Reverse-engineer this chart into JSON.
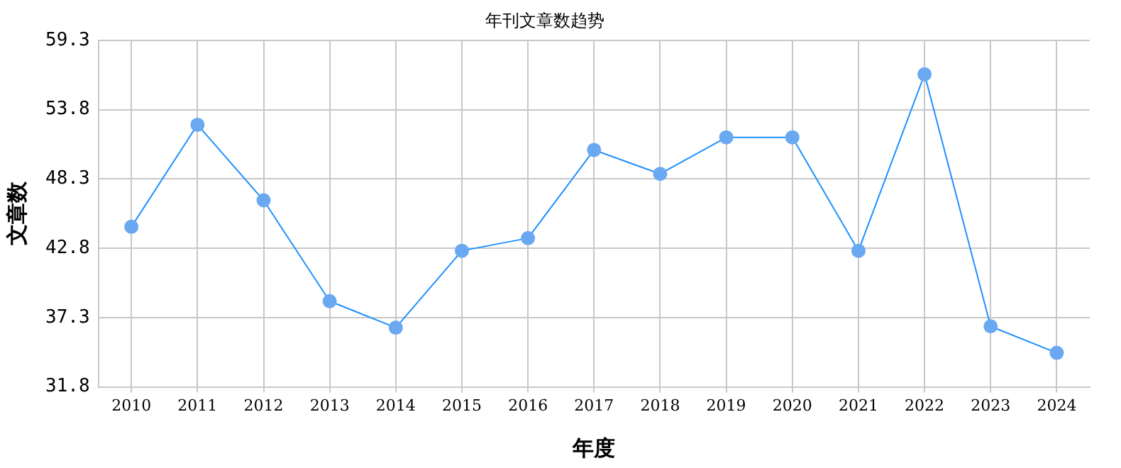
{
  "chart_data": {
    "type": "line",
    "title": "年刊文章数趋势",
    "xlabel": "年度",
    "ylabel": "文章数",
    "categories": [
      "2010",
      "2011",
      "2012",
      "2013",
      "2014",
      "2015",
      "2016",
      "2017",
      "2018",
      "2019",
      "2020",
      "2021",
      "2022",
      "2023",
      "2024"
    ],
    "series": [
      {
        "color": "#1e90ff",
        "values": [
          44.5,
          52.6,
          46.6,
          38.6,
          36.5,
          42.6,
          43.6,
          50.6,
          48.7,
          51.6,
          51.6,
          42.6,
          56.6,
          36.6,
          34.5
        ]
      }
    ],
    "ylim": [
      31.8,
      59.3
    ],
    "yticks": [
      31.8,
      37.3,
      42.8,
      48.3,
      53.8,
      59.3
    ],
    "grid": true,
    "marker": "circle",
    "legend": false
  }
}
